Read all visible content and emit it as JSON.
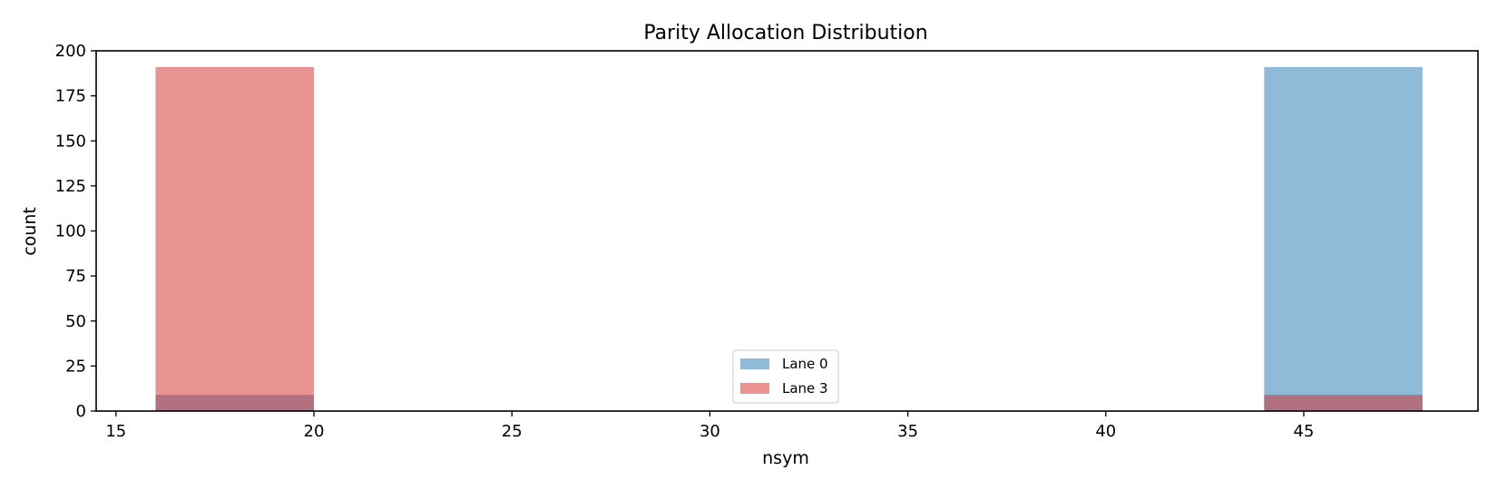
{
  "chart_data": {
    "type": "bar",
    "title": "Parity Allocation Distribution",
    "xlabel": "nsym",
    "ylabel": "count",
    "xlim": [
      14.5,
      49.4
    ],
    "ylim": [
      0,
      200
    ],
    "xticks": [
      15,
      20,
      25,
      30,
      35,
      40,
      45
    ],
    "yticks": [
      0,
      25,
      50,
      75,
      100,
      125,
      150,
      175,
      200
    ],
    "grid": false,
    "legend_position": "lower center",
    "series": [
      {
        "name": "Lane 0",
        "color": "#1f77b4",
        "opacity": 0.5,
        "bins": [
          {
            "x0": 16,
            "x1": 20,
            "count": 9
          },
          {
            "x0": 44,
            "x1": 48,
            "count": 191
          }
        ]
      },
      {
        "name": "Lane 3",
        "color": "#d62728",
        "opacity": 0.5,
        "bins": [
          {
            "x0": 16,
            "x1": 20,
            "count": 191
          },
          {
            "x0": 44,
            "x1": 48,
            "count": 9
          }
        ]
      }
    ]
  }
}
